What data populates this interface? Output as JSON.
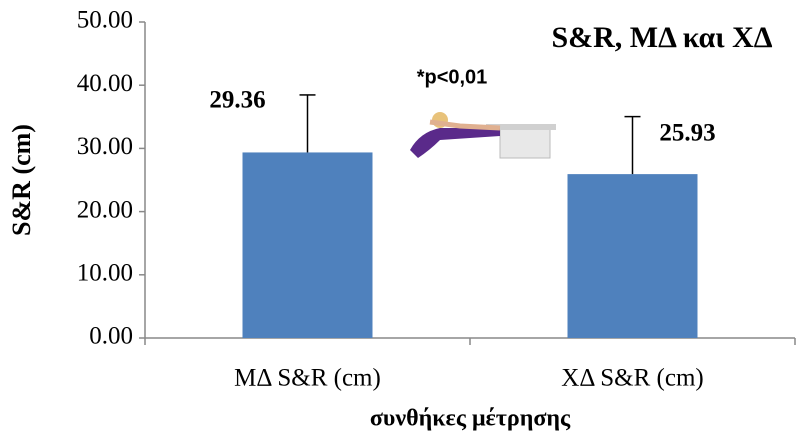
{
  "chart_data": {
    "type": "bar",
    "title": "S&R, ΜΔ και ΧΔ",
    "x_label": "συνθήκες μέτρησης",
    "y_label": "S&R (cm)",
    "annotation": "*p<0,01",
    "categories": [
      "ΜΔ S&R (cm)",
      "ΧΔ S&R (cm)"
    ],
    "values": [
      29.36,
      25.93
    ],
    "errors": [
      9.1,
      9.1
    ],
    "color": "#4f81bd",
    "ylim": [
      0,
      50
    ],
    "yticks": [
      {
        "value": 0,
        "label": "0.00"
      },
      {
        "value": 10,
        "label": "10.00"
      },
      {
        "value": 20,
        "label": "20.00"
      },
      {
        "value": 30,
        "label": "30.00"
      },
      {
        "value": 40,
        "label": "40.00"
      },
      {
        "value": 50,
        "label": "50.00"
      }
    ],
    "grid": false
  }
}
